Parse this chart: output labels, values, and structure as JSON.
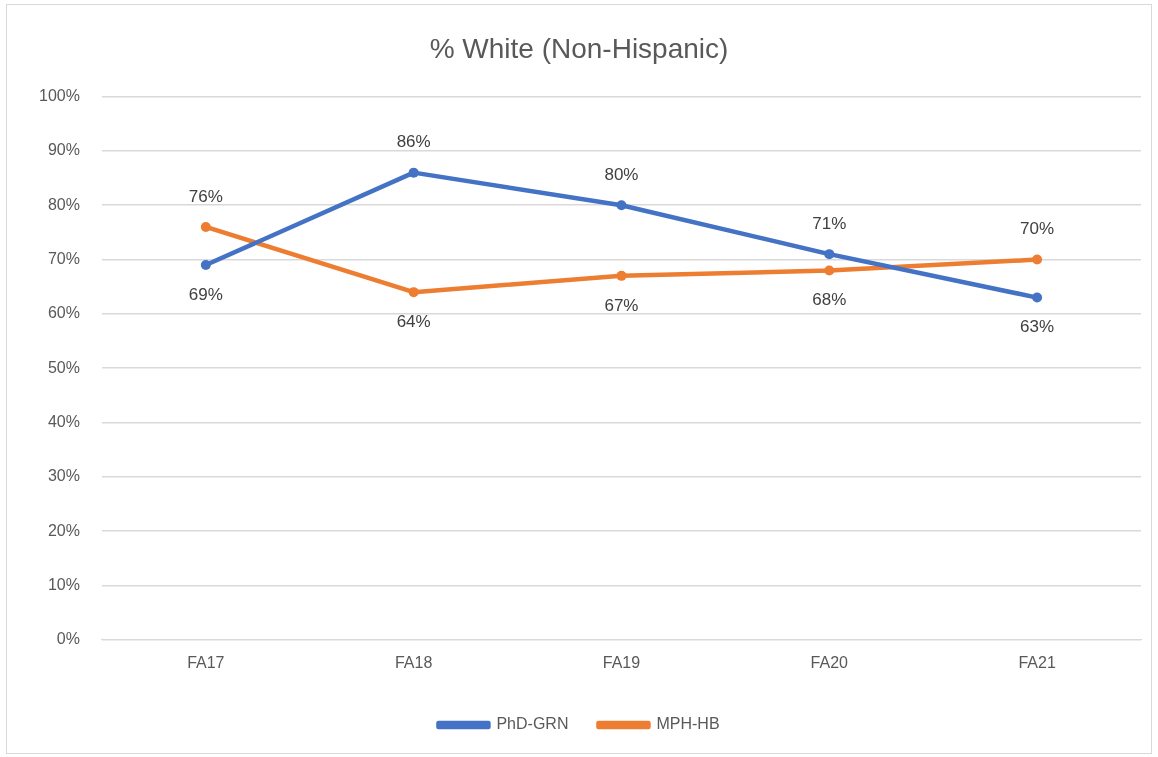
{
  "chart_data": {
    "type": "line",
    "title": "% White (Non-Hispanic)",
    "categories": [
      "FA17",
      "FA18",
      "FA19",
      "FA20",
      "FA21"
    ],
    "series": [
      {
        "name": "PhD-GRN",
        "color": "#4472c4",
        "values": [
          69,
          86,
          80,
          71,
          63
        ],
        "value_labels": [
          "69%",
          "86%",
          "80%",
          "71%",
          "63%"
        ]
      },
      {
        "name": "MPH-HB",
        "color": "#ed7d31",
        "values": [
          76,
          64,
          67,
          68,
          70
        ],
        "value_labels": [
          "76%",
          "64%",
          "67%",
          "68%",
          "70%"
        ]
      }
    ],
    "ylim": [
      0,
      100
    ],
    "yticks": [
      {
        "value": 0,
        "label": "0%"
      },
      {
        "value": 10,
        "label": "10%"
      },
      {
        "value": 20,
        "label": "20%"
      },
      {
        "value": 30,
        "label": "30%"
      },
      {
        "value": 40,
        "label": "40%"
      },
      {
        "value": 50,
        "label": "50%"
      },
      {
        "value": 60,
        "label": "60%"
      },
      {
        "value": 70,
        "label": "70%"
      },
      {
        "value": 80,
        "label": "80%"
      },
      {
        "value": 90,
        "label": "90%"
      },
      {
        "value": 100,
        "label": "100%"
      }
    ],
    "grid": "y",
    "legend": "bottom",
    "marker": "circle",
    "line_style": "solid"
  }
}
